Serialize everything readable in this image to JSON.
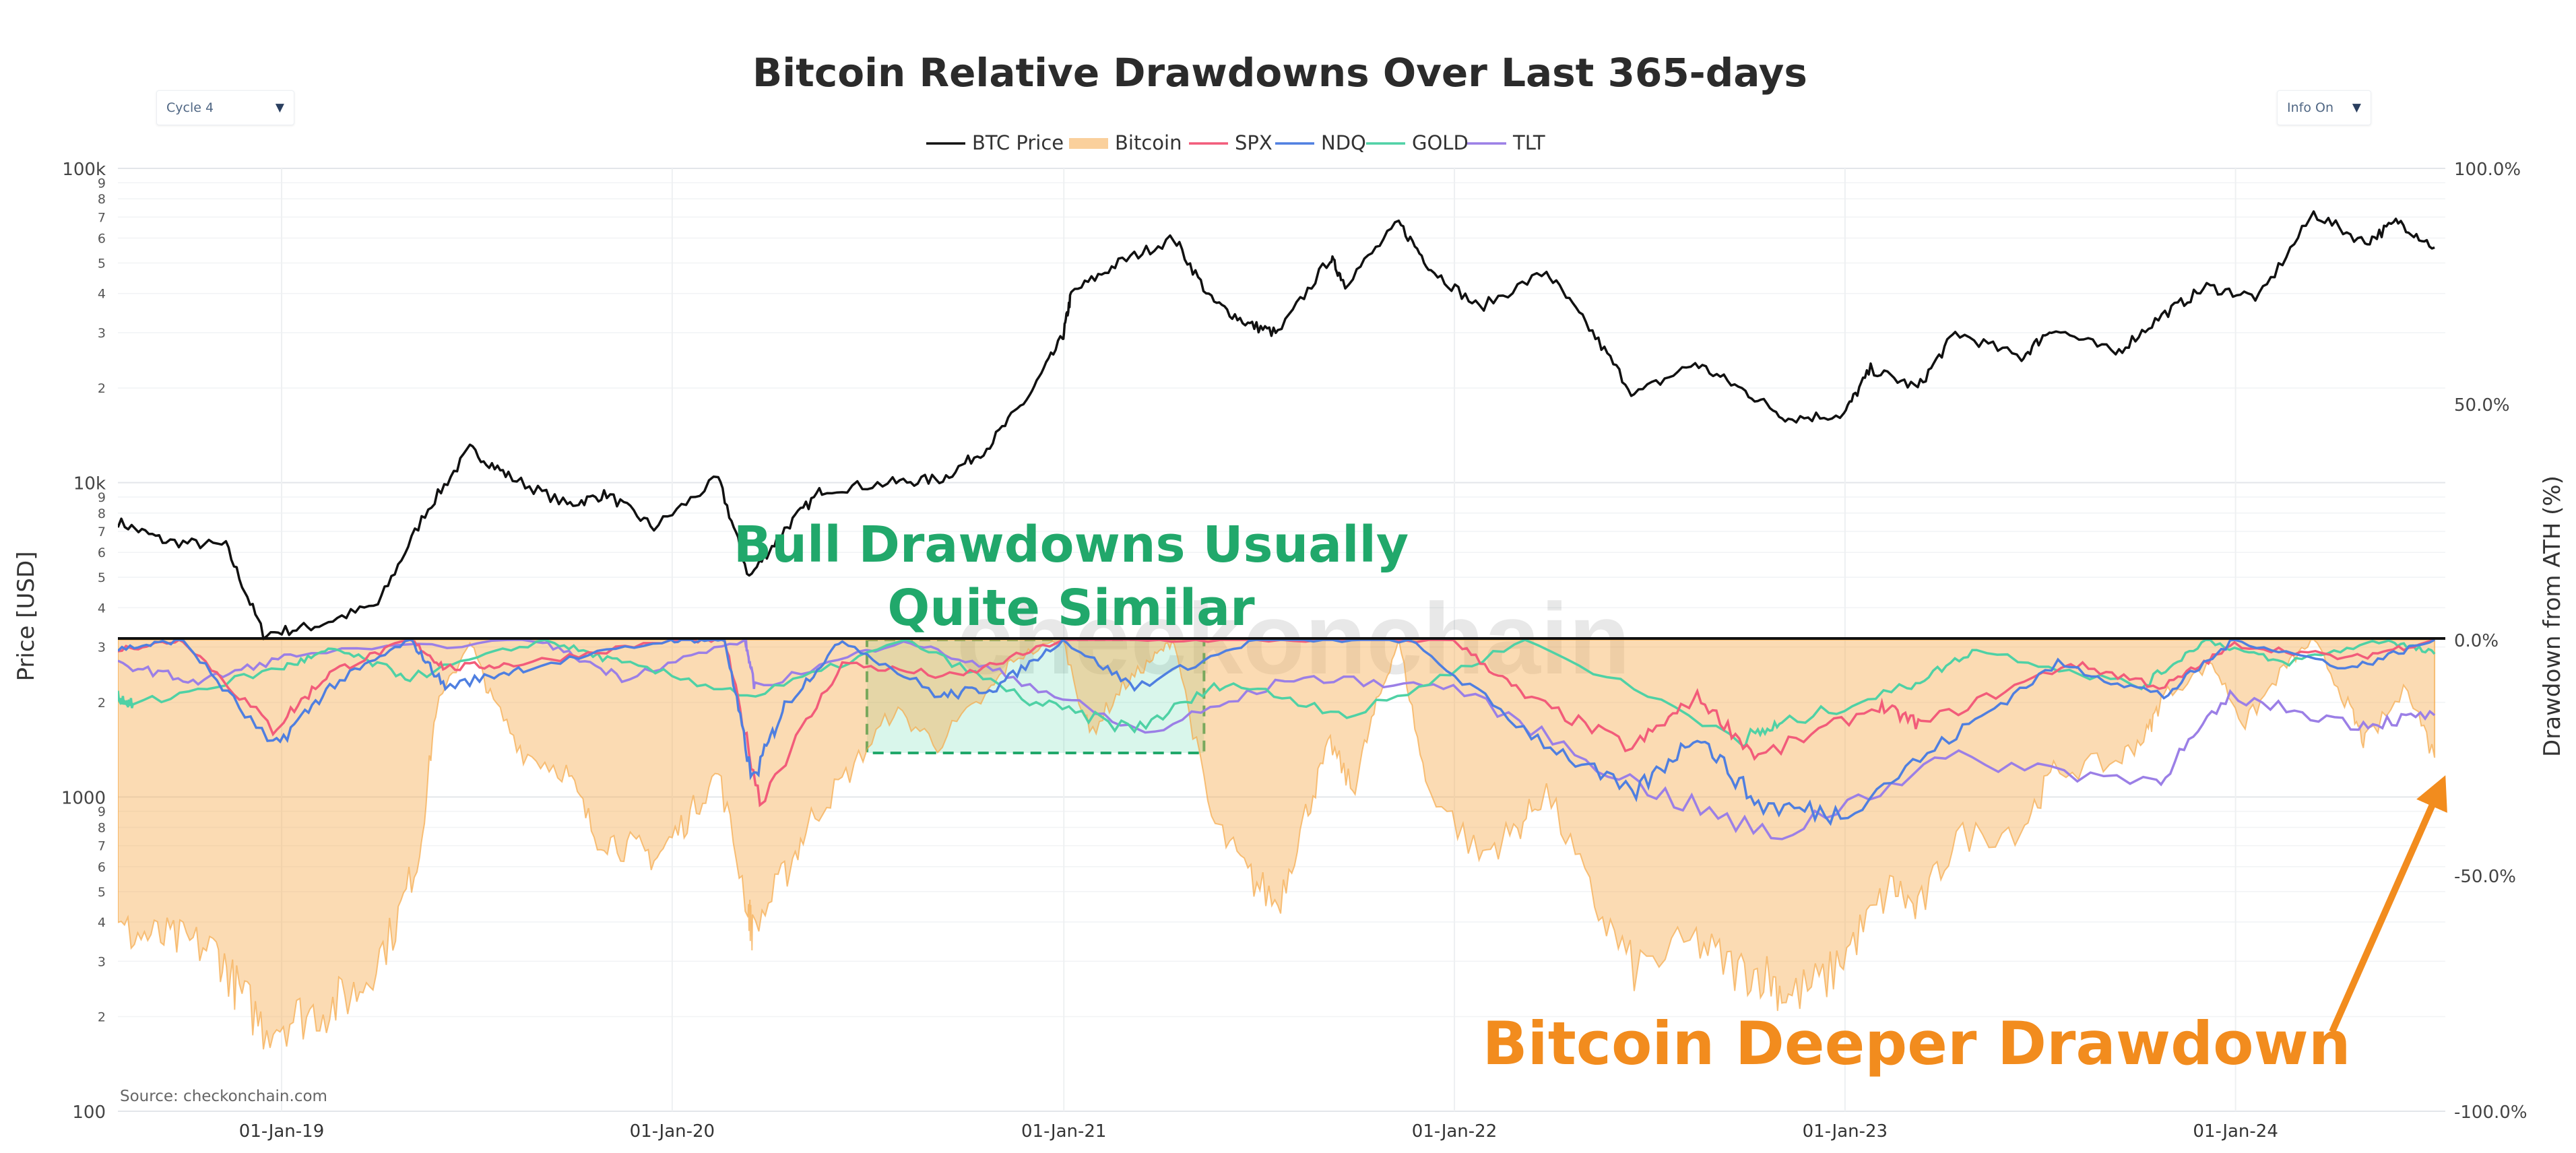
{
  "controls": {
    "cycle_select": "Cycle 4",
    "info_select": "Info On"
  },
  "chart_data": {
    "type": "line",
    "title": "Bitcoin Relative Drawdowns Over Last 365-days",
    "legend_position": "top-center",
    "legend": [
      "BTC Price",
      "Bitcoin",
      "SPX",
      "NDQ",
      "GOLD",
      "TLT"
    ],
    "y_left_label": "Price [USD]",
    "y_left_scale": "log",
    "y_left_range": [
      100,
      100000
    ],
    "y_left_major_ticks": [
      "100",
      "1000",
      "10k",
      "100k"
    ],
    "y_left_minor_ticks": [
      "2",
      "3",
      "4",
      "5",
      "6",
      "7",
      "8",
      "9"
    ],
    "y_right_label": "Drawdown from ATH (%)",
    "y_right_range": [
      -100,
      100
    ],
    "y_right_ticks": [
      "100.0%",
      "50.0%",
      "0.0%",
      "-50.0%",
      "-100.0%"
    ],
    "x_range": [
      "2018-08-01",
      "2024-07-15"
    ],
    "x_ticks": [
      "01-Jan-19",
      "01-Jan-20",
      "01-Jan-21",
      "01-Jan-22",
      "01-Jan-23",
      "01-Jan-24"
    ],
    "source": "Source: checkonchain.com",
    "watermark": "checkonchain",
    "colors": {
      "btc_price": "#111111",
      "bitcoin": "#f5a94a",
      "spx": "#f25c7a",
      "ndq": "#4f7fe0",
      "gold": "#4fd1a5",
      "tlt": "#9b7fe6",
      "annotation_green": "#21a86b",
      "annotation_orange": "#f28c1e"
    },
    "series": [
      {
        "name": "BTC Price",
        "axis": "left",
        "x": [
          "2018-08-01",
          "2018-09-15",
          "2018-11-10",
          "2018-12-15",
          "2019-02-01",
          "2019-04-01",
          "2019-05-15",
          "2019-06-26",
          "2019-08-01",
          "2019-09-25",
          "2019-11-01",
          "2019-12-15",
          "2020-02-13",
          "2020-03-13",
          "2020-04-15",
          "2020-05-20",
          "2020-07-25",
          "2020-09-10",
          "2020-10-21",
          "2020-11-30",
          "2020-12-31",
          "2021-01-08",
          "2021-02-21",
          "2021-04-14",
          "2021-05-19",
          "2021-06-22",
          "2021-07-20",
          "2021-09-07",
          "2021-09-21",
          "2021-11-10",
          "2021-12-10",
          "2022-01-24",
          "2022-03-28",
          "2022-05-10",
          "2022-06-18",
          "2022-08-14",
          "2022-09-30",
          "2022-11-09",
          "2022-12-31",
          "2023-01-25",
          "2023-03-10",
          "2023-04-14",
          "2023-06-15",
          "2023-07-13",
          "2023-09-11",
          "2023-10-24",
          "2023-12-05",
          "2024-01-23",
          "2024-03-14",
          "2024-05-01",
          "2024-06-01",
          "2024-07-05"
        ],
        "values": [
          7500,
          6500,
          6300,
          3300,
          3500,
          4100,
          8000,
          12800,
          10500,
          8500,
          9200,
          7200,
          10300,
          5000,
          7100,
          9500,
          10000,
          10300,
          12900,
          19000,
          29000,
          40000,
          50000,
          60000,
          38000,
          32000,
          29800,
          52000,
          43000,
          67000,
          48000,
          36000,
          47000,
          30000,
          19000,
          24000,
          19500,
          16000,
          16500,
          23000,
          20000,
          30000,
          25000,
          31000,
          25800,
          34000,
          42000,
          38800,
          72000,
          58000,
          68000,
          56000
        ]
      },
      {
        "name": "Bitcoin",
        "axis": "right",
        "x": [
          "2018-08-01",
          "2018-09-01",
          "2018-10-01",
          "2018-11-01",
          "2018-11-20",
          "2018-12-15",
          "2019-01-15",
          "2019-02-15",
          "2019-03-15",
          "2019-04-15",
          "2019-05-10",
          "2019-05-25",
          "2019-06-26",
          "2019-07-15",
          "2019-08-15",
          "2019-09-24",
          "2019-10-20",
          "2019-11-20",
          "2019-12-18",
          "2020-01-15",
          "2020-02-13",
          "2020-03-12",
          "2020-03-16",
          "2020-04-15",
          "2020-05-10",
          "2020-06-15",
          "2020-07-26",
          "2020-09-05",
          "2020-10-20",
          "2020-11-15",
          "2020-12-31",
          "2021-01-25",
          "2021-02-25",
          "2021-03-25",
          "2021-04-14",
          "2021-05-19",
          "2021-06-22",
          "2021-07-20",
          "2021-08-15",
          "2021-09-07",
          "2021-09-28",
          "2021-10-20",
          "2021-11-10",
          "2021-12-05",
          "2022-01-24",
          "2022-03-01",
          "2022-03-28",
          "2022-05-12",
          "2022-06-18",
          "2022-08-15",
          "2022-09-20",
          "2022-10-20",
          "2022-11-09",
          "2022-12-15",
          "2023-01-15",
          "2023-02-15",
          "2023-03-10",
          "2023-04-15",
          "2023-06-15",
          "2023-07-15",
          "2023-09-11",
          "2023-10-10",
          "2023-10-25",
          "2023-12-10",
          "2024-01-10",
          "2024-02-15",
          "2024-03-14",
          "2024-04-15",
          "2024-05-01",
          "2024-06-10",
          "2024-07-05"
        ],
        "values": [
          -62,
          -63,
          -64,
          -66,
          -74,
          -82,
          -80,
          -78,
          -74,
          -62,
          -45,
          -15,
          0,
          -12,
          -24,
          -28,
          -41,
          -44,
          -46,
          -38,
          -28,
          -57,
          -62,
          -50,
          -38,
          -28,
          -15,
          -22,
          -12,
          -4,
          0,
          -20,
          -10,
          -4,
          0,
          -38,
          -50,
          -56,
          -37,
          -22,
          -32,
          -14,
          0,
          -30,
          -46,
          -40,
          -32,
          -56,
          -70,
          -64,
          -70,
          -71,
          -76,
          -72,
          -62,
          -52,
          -58,
          -42,
          -40,
          -28,
          -26,
          -20,
          -12,
          -5,
          -18,
          -6,
          0,
          -14,
          -22,
          -10,
          -25
        ]
      },
      {
        "name": "SPX",
        "axis": "right",
        "x": [
          "2018-08-01",
          "2018-10-01",
          "2018-12-24",
          "2019-02-15",
          "2019-05-01",
          "2019-06-03",
          "2019-08-15",
          "2019-12-31",
          "2020-02-19",
          "2020-03-23",
          "2020-06-08",
          "2020-09-23",
          "2020-12-31",
          "2021-06-30",
          "2021-12-31",
          "2022-03-08",
          "2022-06-16",
          "2022-08-16",
          "2022-10-12",
          "2023-02-02",
          "2023-03-13",
          "2023-07-31",
          "2023-10-27",
          "2023-12-31",
          "2024-04-19",
          "2024-07-05"
        ],
        "values": [
          -2,
          0,
          -19,
          -7,
          0,
          -6,
          -5,
          0,
          0,
          -34,
          -5,
          -8,
          0,
          0,
          0,
          -12,
          -23,
          -12,
          -25,
          -14,
          -18,
          -5,
          -10,
          -1,
          -4,
          0
        ]
      },
      {
        "name": "NDQ",
        "axis": "right",
        "x": [
          "2018-08-01",
          "2018-10-01",
          "2018-12-24",
          "2019-02-15",
          "2019-05-01",
          "2019-06-03",
          "2019-08-15",
          "2019-12-31",
          "2020-02-19",
          "2020-03-16",
          "2020-04-15",
          "2020-06-08",
          "2020-09-08",
          "2020-10-30",
          "2020-12-31",
          "2021-03-08",
          "2021-06-30",
          "2021-11-19",
          "2022-03-14",
          "2022-06-16",
          "2022-08-16",
          "2022-10-12",
          "2022-12-28",
          "2023-04-15",
          "2023-07-19",
          "2023-10-26",
          "2023-12-31",
          "2024-04-19",
          "2024-07-05"
        ],
        "values": [
          -2,
          0,
          -23,
          -10,
          0,
          -10,
          -6,
          0,
          0,
          -30,
          -14,
          0,
          -12,
          -10,
          0,
          -10,
          0,
          0,
          -20,
          -33,
          -20,
          -35,
          -37,
          -20,
          -5,
          -12,
          0,
          -6,
          0
        ]
      },
      {
        "name": "GOLD",
        "axis": "right",
        "x": [
          "2018-08-01",
          "2018-08-16",
          "2018-12-31",
          "2019-02-20",
          "2019-05-01",
          "2019-09-04",
          "2019-11-15",
          "2020-03-19",
          "2020-08-06",
          "2020-11-30",
          "2021-03-08",
          "2021-06-01",
          "2021-09-30",
          "2022-03-08",
          "2022-09-28",
          "2022-11-03",
          "2023-02-28",
          "2023-05-04",
          "2023-10-05",
          "2023-12-04",
          "2024-02-14",
          "2024-05-20",
          "2024-07-05"
        ],
        "values": [
          -12,
          -14,
          -6,
          -2,
          -8,
          0,
          -5,
          -12,
          0,
          -13,
          -19,
          -9,
          -16,
          0,
          -21,
          -18,
          -10,
          -2,
          -10,
          0,
          -5,
          0,
          -3
        ]
      },
      {
        "name": "TLT",
        "axis": "right",
        "x": [
          "2018-08-01",
          "2018-10-15",
          "2019-01-15",
          "2019-08-28",
          "2019-11-15",
          "2020-03-09",
          "2020-03-18",
          "2020-08-04",
          "2020-11-15",
          "2021-03-18",
          "2021-08-04",
          "2021-12-31",
          "2022-06-14",
          "2022-10-24",
          "2023-04-05",
          "2023-10-19",
          "2023-12-27",
          "2024-04-25",
          "2024-07-05"
        ],
        "values": [
          -5,
          -9,
          -3,
          0,
          -8,
          0,
          -10,
          0,
          -8,
          -20,
          -8,
          -10,
          -30,
          -42,
          -25,
          -30,
          -12,
          -18,
          -16
        ]
      }
    ],
    "annotations": [
      {
        "text_lines": [
          "Bull Drawdowns Usually",
          "Quite Similar"
        ],
        "highlight_x": [
          "2020-07-01",
          "2021-05-12"
        ],
        "highlight_y": [
          0,
          -24
        ]
      },
      {
        "text": "Bitcoin Deeper Drawdown",
        "arrow_to_x": "2024-07-05",
        "arrow_to_y": -28
      }
    ]
  }
}
